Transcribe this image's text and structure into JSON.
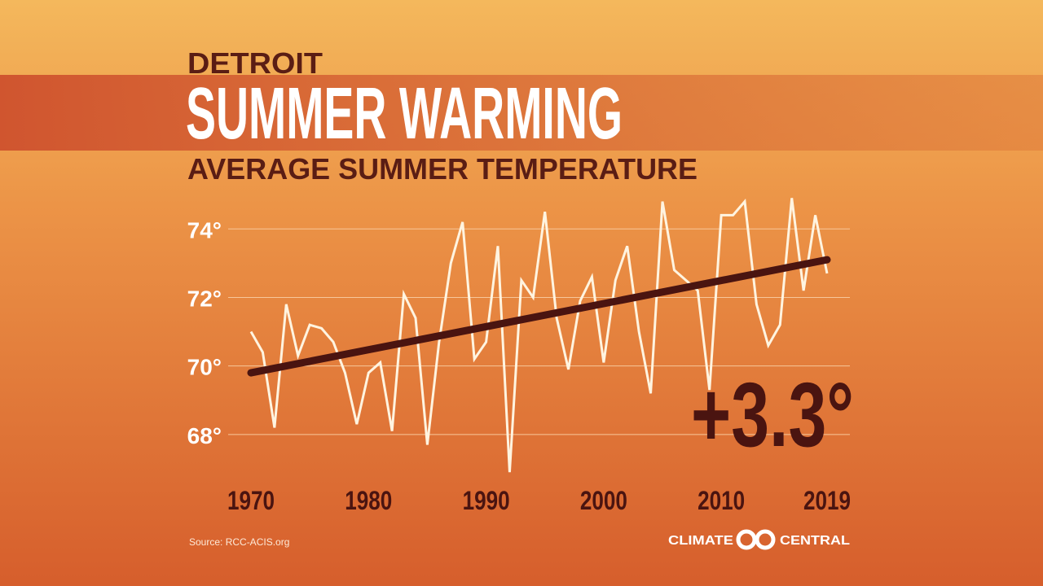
{
  "chart_data": {
    "type": "line",
    "kicker": "DETROIT",
    "title": "SUMMER WARMING",
    "subtitle": "AVERAGE SUMMER TEMPERATURE",
    "annotation": "+3.3°",
    "source": "Source: RCC-ACIS.org",
    "logo": [
      "CLIMATE",
      "CENTRAL"
    ],
    "x": [
      1970,
      1971,
      1972,
      1973,
      1974,
      1975,
      1976,
      1977,
      1978,
      1979,
      1980,
      1981,
      1982,
      1983,
      1984,
      1985,
      1986,
      1987,
      1988,
      1989,
      1990,
      1991,
      1992,
      1993,
      1994,
      1995,
      1996,
      1997,
      1998,
      1999,
      2000,
      2001,
      2002,
      2003,
      2004,
      2005,
      2006,
      2007,
      2008,
      2009,
      2010,
      2011,
      2012,
      2013,
      2014,
      2015,
      2016,
      2017,
      2018,
      2019
    ],
    "values": [
      71.0,
      70.4,
      68.2,
      71.8,
      70.3,
      71.2,
      71.1,
      70.7,
      69.8,
      68.3,
      69.8,
      70.1,
      68.1,
      72.1,
      71.4,
      67.7,
      70.7,
      73.0,
      74.2,
      70.2,
      70.7,
      73.5,
      66.9,
      72.5,
      72.0,
      74.5,
      71.4,
      69.9,
      71.9,
      72.6,
      70.1,
      72.5,
      73.5,
      71.0,
      69.2,
      74.8,
      72.8,
      72.5,
      72.2,
      69.3,
      74.4,
      74.4,
      74.8,
      71.8,
      70.6,
      71.2,
      74.9,
      72.2,
      74.4,
      72.7
    ],
    "color": "#fff4e0",
    "trend": {
      "x": [
        1970,
        2019
      ],
      "values": [
        69.8,
        73.1
      ],
      "color": "#4a1410"
    },
    "xlim": [
      1970,
      2019
    ],
    "xticks": [
      1970,
      1980,
      1990,
      2000,
      2010,
      2019
    ],
    "ylim": [
      66.5,
      75.5
    ],
    "yticks": [
      {
        "value": 68,
        "label": "68°"
      },
      {
        "value": 70,
        "label": "70°"
      },
      {
        "value": 72,
        "label": "72°"
      },
      {
        "value": 74,
        "label": "74°"
      }
    ],
    "grid": true
  }
}
